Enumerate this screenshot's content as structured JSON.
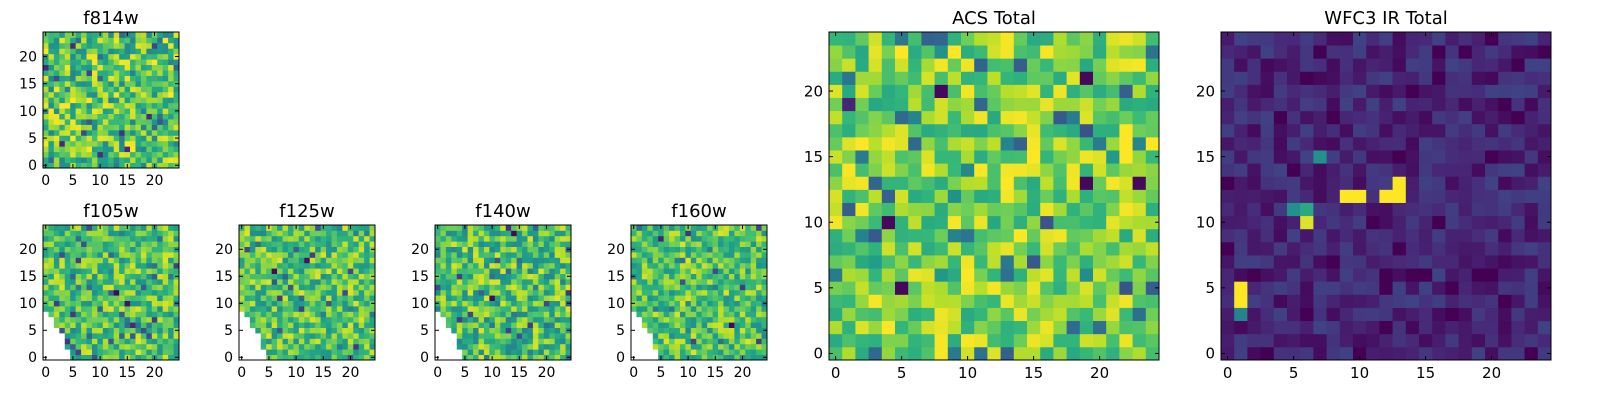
{
  "figure": {
    "background": "#ffffff"
  },
  "colormap": {
    "name": "viridis",
    "stops": [
      "#440154",
      "#482878",
      "#3e4989",
      "#31688e",
      "#26828e",
      "#1f9e89",
      "#35b779",
      "#6ece58",
      "#b5de2b",
      "#fde725"
    ]
  },
  "chart_data": [
    {
      "type": "heatmap",
      "title": "f814w",
      "grid": [
        25,
        25
      ],
      "xlim": [
        0,
        24
      ],
      "ylim": [
        0,
        24
      ],
      "xticks": [
        "0",
        "5",
        "10",
        "15",
        "20"
      ],
      "yticks": [
        "0",
        "5",
        "10",
        "15",
        "20"
      ],
      "range": [
        0.45,
        1.0
      ],
      "seed": 11,
      "features": []
    },
    {
      "type": "heatmap",
      "title": "f105w",
      "grid": [
        25,
        25
      ],
      "xlim": [
        0,
        24
      ],
      "ylim": [
        0,
        24
      ],
      "xticks": [
        "0",
        "5",
        "10",
        "15",
        "20"
      ],
      "yticks": [
        "0",
        "5",
        "10",
        "15",
        "20"
      ],
      "range": [
        0.5,
        0.95
      ],
      "seed": 23,
      "blank_corner": "bottom-left",
      "features": [
        [
          13,
          12,
          0.02
        ],
        [
          15,
          10,
          0.05
        ],
        [
          16,
          6,
          0.12
        ],
        [
          18,
          5,
          0.25
        ],
        [
          14,
          8,
          0.3
        ]
      ]
    },
    {
      "type": "heatmap",
      "title": "f125w",
      "grid": [
        25,
        25
      ],
      "xlim": [
        0,
        24
      ],
      "ylim": [
        0,
        24
      ],
      "xticks": [
        "0",
        "5",
        "10",
        "15",
        "20"
      ],
      "yticks": [
        "0",
        "5",
        "10",
        "15",
        "20"
      ],
      "range": [
        0.5,
        0.95
      ],
      "seed": 37,
      "blank_corner": "bottom-left",
      "features": [
        [
          6,
          16,
          0.02
        ],
        [
          12,
          18,
          0.05
        ]
      ]
    },
    {
      "type": "heatmap",
      "title": "f140w",
      "grid": [
        25,
        25
      ],
      "xlim": [
        0,
        24
      ],
      "ylim": [
        0,
        24
      ],
      "xticks": [
        "0",
        "5",
        "10",
        "15",
        "20"
      ],
      "yticks": [
        "0",
        "5",
        "10",
        "15",
        "20"
      ],
      "range": [
        0.45,
        0.95
      ],
      "seed": 41,
      "blank_corner": "bottom-left",
      "features": [
        [
          14,
          23,
          0.02
        ],
        [
          10,
          11,
          0.03
        ],
        [
          13,
          5,
          0.2
        ],
        [
          15,
          4,
          0.25
        ]
      ]
    },
    {
      "type": "heatmap",
      "title": "f160w",
      "grid": [
        25,
        25
      ],
      "xlim": [
        0,
        24
      ],
      "ylim": [
        0,
        24
      ],
      "xticks": [
        "0",
        "5",
        "10",
        "15",
        "20"
      ],
      "yticks": [
        "0",
        "5",
        "10",
        "15",
        "20"
      ],
      "range": [
        0.5,
        0.95
      ],
      "seed": 53,
      "blank_corner": "bottom-left",
      "features": [
        [
          18,
          6,
          0.02
        ],
        [
          5,
          22,
          0.1
        ]
      ]
    },
    {
      "type": "heatmap",
      "title": "ACS Total",
      "grid": [
        25,
        25
      ],
      "xlim": [
        0,
        24
      ],
      "ylim": [
        0,
        24
      ],
      "xticks": [
        "0",
        "5",
        "10",
        "15",
        "20"
      ],
      "yticks": [
        "0",
        "5",
        "10",
        "15",
        "20"
      ],
      "range": [
        0.6,
        1.0
      ],
      "seed": 67,
      "features": [
        [
          8,
          20,
          0.02
        ],
        [
          4,
          10,
          0.02
        ],
        [
          5,
          5,
          0.02
        ],
        [
          19,
          13,
          0.02
        ],
        [
          23,
          13,
          0.02
        ],
        [
          19,
          21,
          0.02
        ],
        [
          1,
          19,
          0.1
        ],
        [
          22,
          16,
          1.0
        ],
        [
          22,
          15,
          1.0
        ],
        [
          5,
          23,
          1.0
        ],
        [
          9,
          23,
          1.0
        ]
      ]
    },
    {
      "type": "heatmap",
      "title": "WFC3 IR Total",
      "grid": [
        25,
        25
      ],
      "xlim": [
        0,
        24
      ],
      "ylim": [
        0,
        24
      ],
      "xticks": [
        "0",
        "5",
        "10",
        "15",
        "20"
      ],
      "yticks": [
        "0",
        "5",
        "10",
        "15",
        "20"
      ],
      "range": [
        0.02,
        0.2
      ],
      "seed": 79,
      "features": [
        [
          9,
          12,
          1.0
        ],
        [
          10,
          12,
          1.0
        ],
        [
          12,
          12,
          1.0
        ],
        [
          13,
          12,
          1.0
        ],
        [
          13,
          13,
          1.0
        ],
        [
          1,
          5,
          1.0
        ],
        [
          1,
          4,
          1.0
        ],
        [
          6,
          10,
          0.95
        ],
        [
          6,
          11,
          0.6
        ],
        [
          5,
          11,
          0.5
        ],
        [
          1,
          3,
          0.45
        ],
        [
          7,
          15,
          0.5
        ]
      ]
    }
  ]
}
